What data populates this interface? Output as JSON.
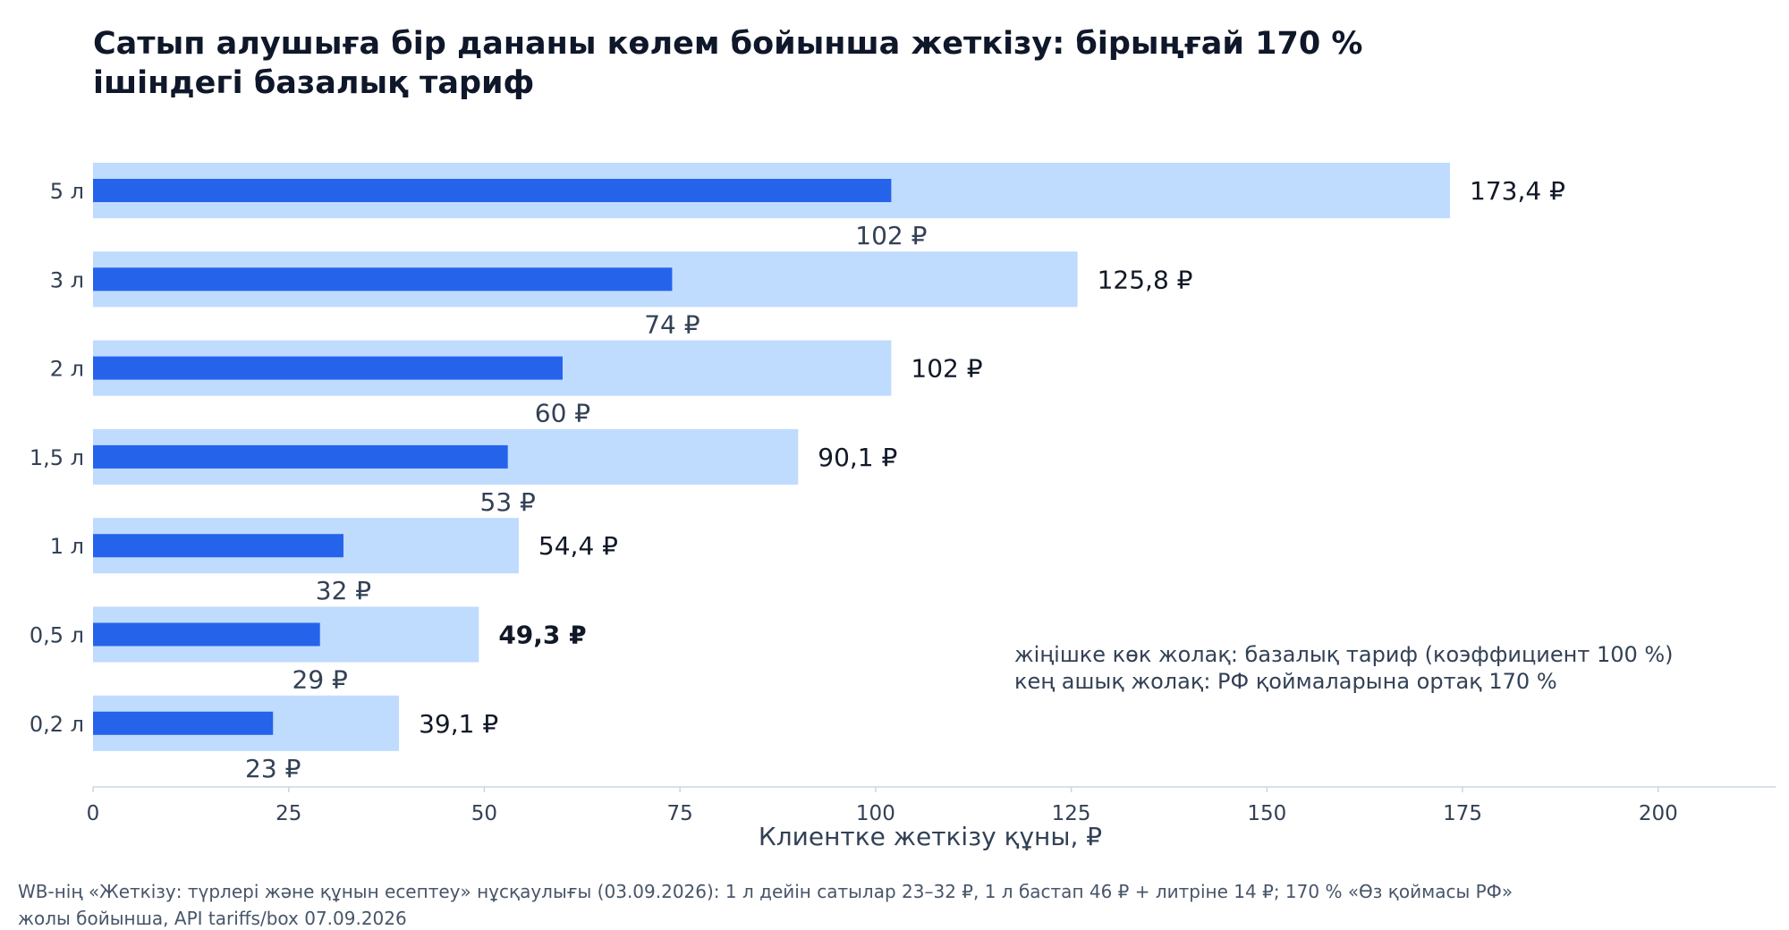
{
  "chart_data": {
    "type": "bar",
    "orientation": "horizontal",
    "title_lines": [
      "Сатып алушыға бір дананы көлем бойынша жеткізу: бірыңғай 170 %",
      "ішіндегі базалық тариф"
    ],
    "categories": [
      "5 л",
      "3 л",
      "2 л",
      "1,5 л",
      "1 л",
      "0,5 л",
      "0,2 л"
    ],
    "series": [
      {
        "values": [
          173.4,
          125.8,
          102,
          90.1,
          54.4,
          49.3,
          39.1
        ],
        "labels": [
          "173,4 ₽",
          "125,8 ₽",
          "102 ₽",
          "90,1 ₽",
          "54,4 ₽",
          "49,3 ₽",
          "39,1 ₽"
        ],
        "color": "#bfdbfe"
      },
      {
        "values": [
          102,
          74,
          60,
          53,
          32,
          29,
          23
        ],
        "labels": [
          "102 ₽",
          "74 ₽",
          "60 ₽",
          "53 ₽",
          "32 ₽",
          "29 ₽",
          "23 ₽"
        ],
        "color": "#2563eb"
      }
    ],
    "highlight_category": "0,5 л",
    "xlabel": "Клиентке жеткізу құны, ₽",
    "xlim": [
      0,
      215
    ],
    "xticks": [
      0,
      25,
      50,
      75,
      100,
      125,
      150,
      175,
      200
    ],
    "tick_labels": [
      "0",
      "25",
      "50",
      "75",
      "100",
      "125",
      "150",
      "175",
      "200"
    ],
    "grid": false,
    "annotation_lines": [
      "жіңішке көк жолақ: базалық тариф (коэффициент 100 %)",
      "кең ашық жолақ: РФ қоймаларына ортақ 170 %"
    ],
    "footnote_lines": [
      "WB-нің «Жеткізу: түрлері және құнын есептеу» нұсқаулығы (03.09.2026): 1 л дейін сатылар 23–32 ₽, 1 л бастап 46 ₽ + литріне 14 ₽; 170 % «Өз қоймасы РФ»",
      "жолы бойынша, API tariffs/box 07.09.2026"
    ],
    "colors": {
      "title": "#0f172a",
      "text": "#334155",
      "axis": "#cbd5e1"
    }
  }
}
